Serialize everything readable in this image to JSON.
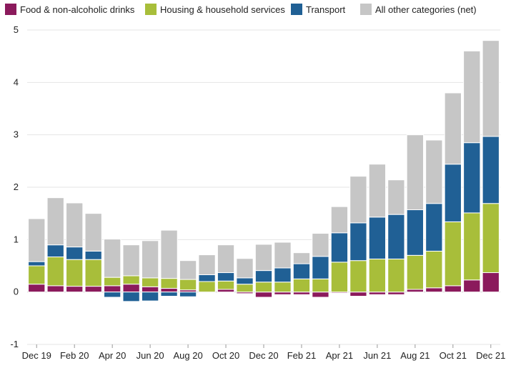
{
  "chart_data": {
    "type": "bar",
    "stacked": true,
    "title": "",
    "xlabel": "",
    "ylabel": "",
    "ylim": [
      -1,
      5
    ],
    "yticks": [
      -1,
      0,
      1,
      2,
      3,
      4,
      5
    ],
    "grid": true,
    "legend_position": "top",
    "categories": [
      "Dec 19",
      "Jan 20",
      "Feb 20",
      "Mar 20",
      "Apr 20",
      "May 20",
      "Jun 20",
      "Jul 20",
      "Aug 20",
      "Sep 20",
      "Oct 20",
      "Nov 20",
      "Dec 20",
      "Jan 21",
      "Feb 21",
      "Mar 21",
      "Apr 21",
      "May 21",
      "Jun 21",
      "Jul 21",
      "Aug 21",
      "Sep 21",
      "Oct 21",
      "Nov 21",
      "Dec 21"
    ],
    "xtick_labels": [
      "Dec 19",
      "Feb 20",
      "Apr 20",
      "Jun 20",
      "Aug 20",
      "Oct 20",
      "Dec 20",
      "Feb 21",
      "Apr 21",
      "Jun 21",
      "Aug 21",
      "Oct 21",
      "Dec 21"
    ],
    "series": [
      {
        "name": "Food & non-alcoholic drinks",
        "color": "#8b1a5c",
        "values": [
          0.15,
          0.12,
          0.11,
          0.11,
          0.12,
          0.15,
          0.1,
          0.07,
          0.04,
          0.0,
          0.05,
          -0.03,
          -0.1,
          -0.05,
          -0.05,
          -0.1,
          -0.02,
          -0.08,
          -0.05,
          -0.05,
          0.05,
          0.08,
          0.12,
          0.23,
          0.37
        ]
      },
      {
        "name": "Housing & household services",
        "color": "#a8be3a",
        "values": [
          0.35,
          0.55,
          0.51,
          0.51,
          0.16,
          0.16,
          0.17,
          0.19,
          0.2,
          0.2,
          0.16,
          0.15,
          0.19,
          0.19,
          0.25,
          0.25,
          0.57,
          0.6,
          0.63,
          0.63,
          0.65,
          0.7,
          1.22,
          1.28,
          1.32
        ]
      },
      {
        "name": "Transport",
        "color": "#206095",
        "values": [
          0.08,
          0.23,
          0.24,
          0.16,
          -0.1,
          -0.18,
          -0.17,
          -0.08,
          -0.09,
          0.13,
          0.16,
          0.12,
          0.22,
          0.27,
          0.29,
          0.43,
          0.56,
          0.72,
          0.8,
          0.85,
          0.87,
          0.91,
          1.1,
          1.34,
          1.28
        ]
      },
      {
        "name": "All other categories (net)",
        "color": "#c6c6c6",
        "values": [
          0.82,
          0.9,
          0.84,
          0.72,
          0.73,
          0.59,
          0.71,
          0.92,
          0.36,
          0.38,
          0.53,
          0.37,
          0.5,
          0.49,
          0.21,
          0.44,
          0.5,
          0.89,
          1.01,
          0.66,
          1.43,
          1.21,
          1.36,
          1.75,
          1.83
        ]
      }
    ]
  }
}
